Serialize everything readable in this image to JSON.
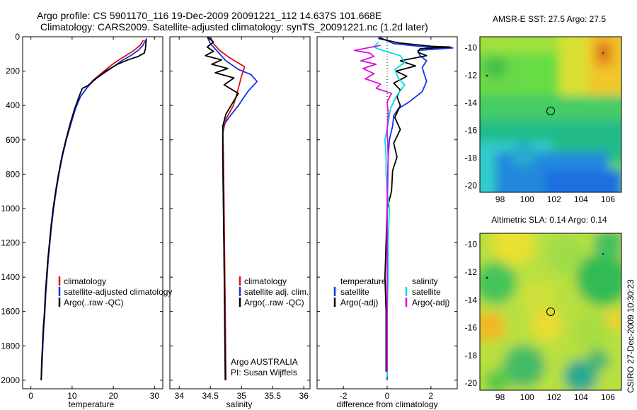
{
  "header": {
    "line1": "Argo profile: CS 5901170_116 19-Dec-2009 20091221_112 14.637S 101.668E",
    "line2": "Climatology: CARS2009. Satellite-adjusted climatology: synTS_20091221.nc (1.2d later)"
  },
  "credit": "CSIRO 27-Dec-2009 10:30:23",
  "colors": {
    "climatology": "#dd1111",
    "satellite": "#1133ee",
    "argo": "#000000",
    "salinity_satellite": "#00dddd",
    "salinity_argo": "#dd11dd"
  },
  "chart_data": [
    {
      "type": "line",
      "name": "temperature-panel",
      "xlabel": "temperature",
      "xlim": [
        -2,
        32
      ],
      "ylim": [
        2050,
        0
      ],
      "xticks": [
        "0",
        "10",
        "20",
        "30"
      ],
      "xtick_values": [
        0,
        10,
        20,
        30
      ],
      "yticks": [
        "0",
        "200",
        "400",
        "600",
        "800",
        "1000",
        "1200",
        "1400",
        "1600",
        "1800",
        "2000"
      ],
      "ytick_values": [
        0,
        200,
        400,
        600,
        800,
        1000,
        1200,
        1400,
        1600,
        1800,
        2000
      ],
      "legend": [
        "climatology",
        "satellite-adjusted climatology",
        "Argo(..raw -QC)"
      ],
      "series": [
        {
          "name": "climatology",
          "color": "#dd1111",
          "points": [
            [
              27.3,
              20
            ],
            [
              26.5,
              50
            ],
            [
              25,
              80
            ],
            [
              23,
              110
            ],
            [
              21,
              140
            ],
            [
              19,
              175
            ],
            [
              17,
              215
            ],
            [
              15,
              255
            ],
            [
              13.5,
              300
            ],
            [
              12,
              350
            ],
            [
              10.8,
              420
            ],
            [
              9.8,
              500
            ],
            [
              8.6,
              600
            ],
            [
              7.6,
              700
            ],
            [
              6.8,
              800
            ],
            [
              6.1,
              900
            ],
            [
              5.5,
              1000
            ],
            [
              5,
              1100
            ],
            [
              4.6,
              1200
            ],
            [
              4.2,
              1300
            ],
            [
              3.9,
              1400
            ],
            [
              3.6,
              1500
            ],
            [
              3.4,
              1600
            ],
            [
              3.1,
              1700
            ],
            [
              2.9,
              1800
            ],
            [
              2.7,
              1900
            ],
            [
              2.5,
              2000
            ]
          ]
        },
        {
          "name": "satellite",
          "color": "#1133ee",
          "points": [
            [
              27.8,
              20
            ],
            [
              27.2,
              50
            ],
            [
              26,
              80
            ],
            [
              24.2,
              110
            ],
            [
              22,
              140
            ],
            [
              20,
              175
            ],
            [
              17.5,
              215
            ],
            [
              15.2,
              255
            ],
            [
              13.5,
              300
            ],
            [
              12,
              350
            ],
            [
              10.8,
              420
            ],
            [
              9.8,
              500
            ],
            [
              8.6,
              600
            ],
            [
              7.6,
              700
            ],
            [
              6.8,
              800
            ],
            [
              6.1,
              900
            ],
            [
              5.5,
              1000
            ],
            [
              5,
              1100
            ],
            [
              4.6,
              1200
            ],
            [
              4.2,
              1300
            ],
            [
              3.9,
              1400
            ],
            [
              3.6,
              1500
            ],
            [
              3.4,
              1600
            ],
            [
              3.1,
              1700
            ],
            [
              2.9,
              1800
            ],
            [
              2.7,
              1900
            ],
            [
              2.5,
              2000
            ]
          ]
        },
        {
          "name": "argo",
          "color": "#000000",
          "points": [
            [
              28,
              10
            ],
            [
              27.9,
              40
            ],
            [
              27.8,
              70
            ],
            [
              27.5,
              95
            ],
            [
              26,
              115
            ],
            [
              23.5,
              135
            ],
            [
              21,
              160
            ],
            [
              18.5,
              195
            ],
            [
              16,
              240
            ],
            [
              13.8,
              285
            ],
            [
              12.5,
              300
            ],
            [
              11.8,
              340
            ],
            [
              10.6,
              420
            ],
            [
              9.6,
              500
            ],
            [
              8.5,
              600
            ],
            [
              7.5,
              700
            ],
            [
              6.7,
              800
            ],
            [
              6,
              900
            ],
            [
              5.4,
              1000
            ],
            [
              4.9,
              1100
            ],
            [
              4.5,
              1200
            ],
            [
              4.1,
              1300
            ],
            [
              3.8,
              1400
            ],
            [
              3.5,
              1500
            ],
            [
              3.3,
              1600
            ],
            [
              3,
              1700
            ],
            [
              2.8,
              1800
            ],
            [
              2.6,
              1900
            ],
            [
              2.5,
              2000
            ]
          ]
        }
      ]
    },
    {
      "type": "line",
      "name": "salinity-panel",
      "xlabel": "salinity",
      "xlim": [
        33.85,
        36.1
      ],
      "ylim": [
        2050,
        0
      ],
      "xticks": [
        "34",
        "34.5",
        "35",
        "35.5",
        "36"
      ],
      "xtick_values": [
        34,
        34.5,
        35,
        35.5,
        36
      ],
      "legend": [
        "climatology",
        "satellite adj. clim.",
        "Argo(..raw -QC)"
      ],
      "annotation": [
        "Argo AUSTRALIA",
        "PI: Susan Wijffels"
      ],
      "series": [
        {
          "name": "climatology",
          "color": "#dd1111",
          "points": [
            [
              34.5,
              0
            ],
            [
              34.55,
              40
            ],
            [
              34.65,
              80
            ],
            [
              34.8,
              120
            ],
            [
              35.05,
              175
            ],
            [
              35,
              230
            ],
            [
              34.95,
              300
            ],
            [
              34.87,
              400
            ],
            [
              34.75,
              480
            ],
            [
              34.7,
              560
            ],
            [
              34.71,
              700
            ],
            [
              34.72,
              1000
            ],
            [
              34.73,
              1300
            ],
            [
              34.74,
              1600
            ],
            [
              34.75,
              2000
            ]
          ]
        },
        {
          "name": "satellite",
          "color": "#1133ee",
          "points": [
            [
              34.45,
              0
            ],
            [
              34.5,
              40
            ],
            [
              34.6,
              80
            ],
            [
              34.75,
              140
            ],
            [
              34.95,
              190
            ],
            [
              35.15,
              220
            ],
            [
              35.25,
              260
            ],
            [
              35.1,
              320
            ],
            [
              34.95,
              400
            ],
            [
              34.8,
              470
            ],
            [
              34.7,
              520
            ],
            [
              34.7,
              700
            ],
            [
              34.71,
              1000
            ],
            [
              34.72,
              1300
            ],
            [
              34.73,
              1600
            ],
            [
              34.74,
              2000
            ]
          ]
        },
        {
          "name": "argo",
          "color": "#000000",
          "points": [
            [
              34.45,
              0
            ],
            [
              34.55,
              30
            ],
            [
              34.45,
              60
            ],
            [
              34.55,
              85
            ],
            [
              34.42,
              110
            ],
            [
              34.68,
              135
            ],
            [
              34.52,
              160
            ],
            [
              34.78,
              185
            ],
            [
              34.58,
              210
            ],
            [
              34.88,
              240
            ],
            [
              34.72,
              280
            ],
            [
              34.95,
              330
            ],
            [
              34.85,
              390
            ],
            [
              34.75,
              450
            ],
            [
              34.7,
              520
            ],
            [
              34.7,
              700
            ],
            [
              34.71,
              1000
            ],
            [
              34.72,
              1300
            ],
            [
              34.73,
              1600
            ],
            [
              34.74,
              2000
            ]
          ]
        }
      ]
    },
    {
      "type": "line",
      "name": "difference-panel",
      "xlabel": "difference from climatology",
      "xlim": [
        -3.2,
        3.2
      ],
      "ylim": [
        2050,
        0
      ],
      "xticks": [
        "-2",
        "0",
        "2"
      ],
      "xtick_values": [
        -2,
        0,
        2
      ],
      "legend_left": [
        "temperature",
        "satellite",
        "Argo(-adj)"
      ],
      "legend_right": [
        "salinity",
        "satellite",
        "Argo(-adj)"
      ],
      "series": [
        {
          "name": "temperature-satellite",
          "color": "#1133ee",
          "points": [
            [
              -0.4,
              0
            ],
            [
              0.3,
              40
            ],
            [
              1.8,
              60
            ],
            [
              3,
              65
            ],
            [
              1.4,
              80
            ],
            [
              1.5,
              110
            ],
            [
              1.8,
              140
            ],
            [
              1.6,
              180
            ],
            [
              1.7,
              220
            ],
            [
              1.8,
              260
            ],
            [
              1.6,
              320
            ],
            [
              1,
              380
            ],
            [
              0.5,
              420
            ],
            [
              0.3,
              460
            ],
            [
              0.25,
              520
            ],
            [
              0.1,
              600
            ],
            [
              0.05,
              700
            ],
            [
              0,
              1000
            ],
            [
              0,
              1300
            ],
            [
              0,
              1600
            ],
            [
              0,
              2000
            ]
          ]
        },
        {
          "name": "temperature-argo",
          "color": "#000000",
          "points": [
            [
              -0.4,
              10
            ],
            [
              0.5,
              35
            ],
            [
              2,
              55
            ],
            [
              2.9,
              60
            ],
            [
              1.5,
              70
            ],
            [
              1.4,
              90
            ],
            [
              1.8,
              110
            ],
            [
              0.6,
              140
            ],
            [
              1.3,
              170
            ],
            [
              0.4,
              200
            ],
            [
              0.9,
              230
            ],
            [
              0.3,
              270
            ],
            [
              0.6,
              310
            ],
            [
              0.45,
              350
            ],
            [
              0.6,
              400
            ],
            [
              0.35,
              470
            ],
            [
              0.6,
              540
            ],
            [
              0.3,
              620
            ],
            [
              0.45,
              700
            ],
            [
              0.25,
              780
            ],
            [
              0.2,
              900
            ],
            [
              0,
              1000
            ],
            [
              -0.05,
              1200
            ],
            [
              -0.1,
              1400
            ],
            [
              -0.05,
              1600
            ],
            [
              -0.05,
              1800
            ],
            [
              -0.05,
              1950
            ]
          ]
        },
        {
          "name": "salinity-satellite",
          "color": "#00dddd",
          "points": [
            [
              -0.4,
              30
            ],
            [
              -0.6,
              60
            ],
            [
              -0.2,
              80
            ],
            [
              0.6,
              110
            ],
            [
              0.8,
              150
            ],
            [
              0.35,
              190
            ],
            [
              0.5,
              240
            ],
            [
              0.8,
              280
            ],
            [
              0.4,
              350
            ],
            [
              0.15,
              420
            ],
            [
              0.05,
              500
            ],
            [
              -0.1,
              600
            ],
            [
              -0.05,
              700
            ],
            [
              -0.05,
              800
            ],
            [
              0,
              900
            ],
            [
              0.1,
              1000
            ],
            [
              0.05,
              1200
            ],
            [
              0.05,
              1400
            ],
            [
              0,
              1600
            ],
            [
              0,
              1800
            ],
            [
              0,
              1980
            ]
          ]
        },
        {
          "name": "salinity-argo",
          "color": "#dd11dd",
          "points": [
            [
              -0.3,
              50
            ],
            [
              -1.5,
              80
            ],
            [
              -0.8,
              95
            ],
            [
              -0.6,
              115
            ],
            [
              -1.2,
              140
            ],
            [
              -0.5,
              160
            ],
            [
              -1.1,
              185
            ],
            [
              -0.6,
              215
            ],
            [
              -1,
              245
            ],
            [
              -0.3,
              275
            ],
            [
              -0.5,
              300
            ],
            [
              0.2,
              330
            ],
            [
              0,
              380
            ],
            [
              0.05,
              450
            ],
            [
              0,
              550
            ],
            [
              0.05,
              700
            ],
            [
              0,
              900
            ],
            [
              0,
              1200
            ],
            [
              0,
              1600
            ],
            [
              0,
              1950
            ]
          ]
        }
      ]
    },
    {
      "type": "heatmap",
      "name": "sst-map",
      "title": "AMSR-E SST: 27.5 Argo: 27.5",
      "xlim": [
        96.5,
        107
      ],
      "ylim": [
        -20.5,
        -9.2
      ],
      "xticks": [
        "98",
        "100",
        "102",
        "104",
        "106"
      ],
      "xtick_values": [
        98,
        100,
        102,
        104,
        106
      ],
      "yticks": [
        "-10",
        "-12",
        "-14",
        "-16",
        "-18",
        "-20"
      ],
      "ytick_values": [
        -10,
        -12,
        -14,
        -16,
        -18,
        -20
      ],
      "float_position": [
        101.668,
        -14.637
      ]
    },
    {
      "type": "heatmap",
      "name": "sla-map",
      "title": "Altimetric SLA: 0.14 Argo: 0.14",
      "xlim": [
        96.5,
        107
      ],
      "ylim": [
        -20.5,
        -9.2
      ],
      "xticks": [
        "98",
        "100",
        "102",
        "104",
        "106"
      ],
      "xtick_values": [
        98,
        100,
        102,
        104,
        106
      ],
      "yticks": [
        "-10",
        "-12",
        "-14",
        "-16",
        "-18",
        "-20"
      ],
      "ytick_values": [
        -10,
        -12,
        -14,
        -16,
        -18,
        -20
      ],
      "float_position": [
        101.668,
        -14.637
      ]
    }
  ]
}
